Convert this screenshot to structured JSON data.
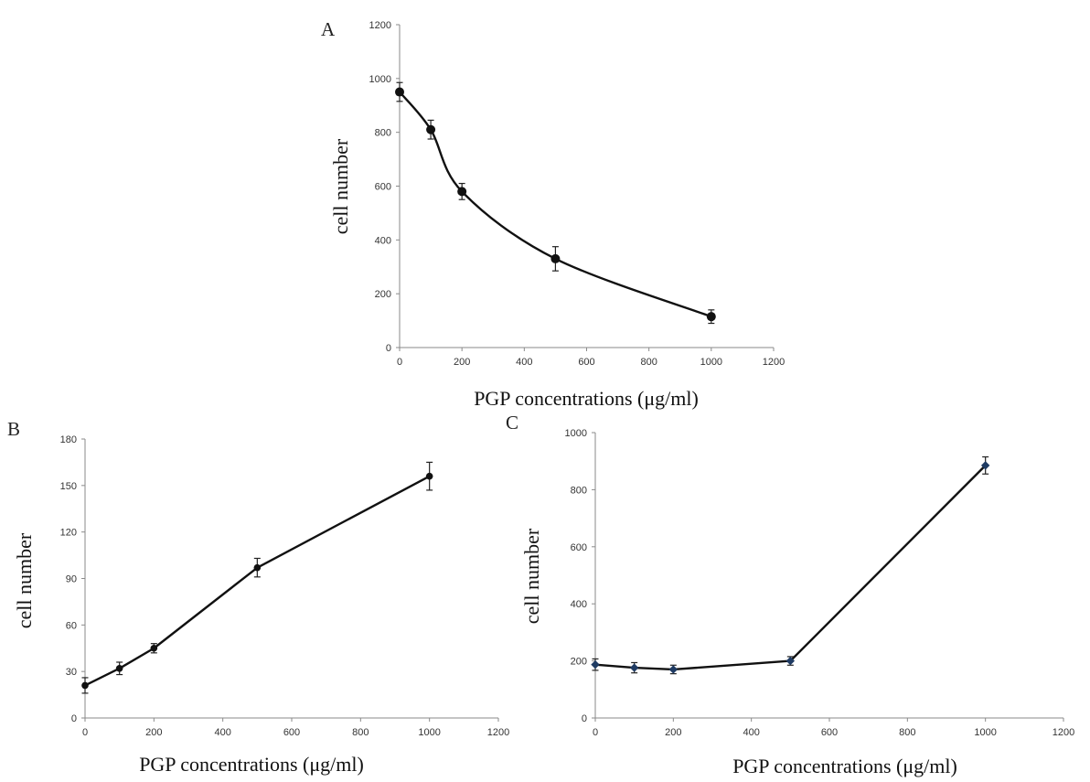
{
  "chart_data": [
    {
      "panel": "A",
      "type": "line",
      "smooth": true,
      "xlabel": "PGP concentrations (μg/ml)",
      "ylabel": "cell number",
      "xlim": [
        0,
        1200
      ],
      "ylim": [
        0,
        1200
      ],
      "xticks": [
        0,
        200,
        400,
        600,
        800,
        1000,
        1200
      ],
      "yticks": [
        0,
        200,
        400,
        600,
        800,
        1000,
        1200
      ],
      "grid": false,
      "series": [
        {
          "x": [
            0,
            100,
            200,
            500,
            1000
          ],
          "y": [
            950,
            810,
            580,
            330,
            115
          ],
          "error": [
            35,
            35,
            30,
            45,
            25
          ],
          "color": "#111111",
          "marker": "circle"
        }
      ]
    },
    {
      "panel": "B",
      "type": "line",
      "smooth": false,
      "xlabel": "PGP concentrations (μg/ml)",
      "ylabel": "cell number",
      "xlim": [
        0,
        1200
      ],
      "ylim": [
        0,
        180
      ],
      "xticks": [
        0,
        200,
        400,
        600,
        800,
        1000,
        1200
      ],
      "yticks": [
        0,
        30,
        60,
        90,
        120,
        150,
        180
      ],
      "grid": false,
      "series": [
        {
          "x": [
            0,
            100,
            200,
            500,
            1000
          ],
          "y": [
            21,
            32,
            45,
            97,
            156
          ],
          "error": [
            5,
            4,
            3,
            6,
            9
          ],
          "color": "#111111",
          "marker": "circle"
        }
      ]
    },
    {
      "panel": "C",
      "type": "line",
      "smooth": false,
      "xlabel": "PGP concentrations (μg/ml)",
      "ylabel": "cell number",
      "xlim": [
        0,
        1200
      ],
      "ylim": [
        0,
        1000
      ],
      "xticks": [
        0,
        200,
        400,
        600,
        800,
        1000,
        1200
      ],
      "yticks": [
        0,
        200,
        400,
        600,
        800,
        1000
      ],
      "grid": false,
      "series": [
        {
          "x": [
            0,
            100,
            200,
            500,
            1000
          ],
          "y": [
            187,
            176,
            170,
            200,
            885
          ],
          "error": [
            20,
            18,
            15,
            15,
            30
          ],
          "color": "#111111",
          "markerColor": "#1f3b63",
          "marker": "diamond"
        }
      ]
    }
  ]
}
